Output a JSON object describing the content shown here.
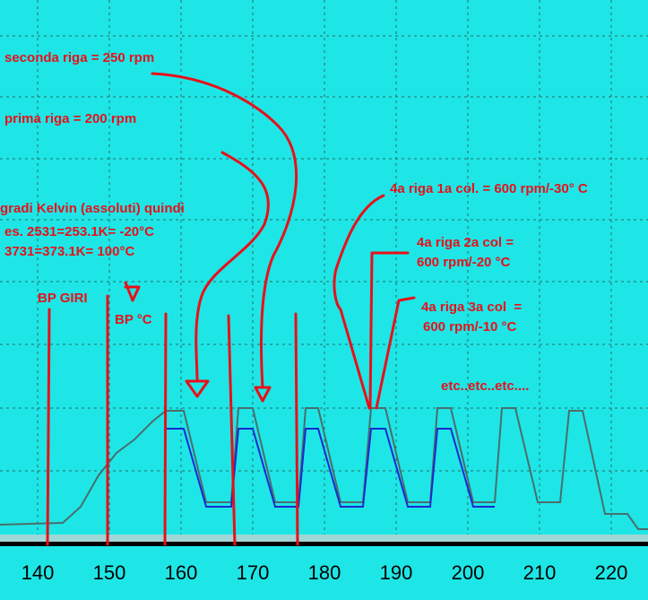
{
  "annotations": [
    "seconda riga = 250 rpm",
    "prima riga = 200 rpm",
    "gradi Kelvin (assoluti) quindi",
    "es. 2531=253.1K= -20°C",
    "3731=373.1K= 100°C",
    "BP GIRI",
    "BP °C",
    "4a riga 1a col. = 600 rpm/-30° C",
    "4a riga 2a col =",
    "600 rpm/-20 °C",
    "4a riga 3a col  =",
    "600 rpm/-10 °C",
    "etc..etc..etc...."
  ],
  "x_axis_labels": [
    "140",
    "150",
    "160",
    "170",
    "180",
    "190",
    "200",
    "210",
    "220"
  ]
}
